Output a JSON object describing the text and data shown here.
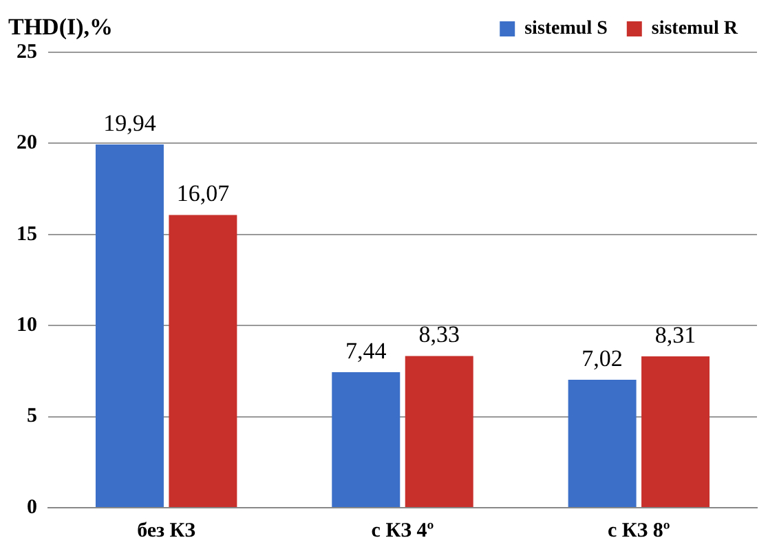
{
  "chart_data": {
    "type": "bar",
    "ylabel": "THD(I),%",
    "categories": [
      "без КЗ",
      "с КЗ 4º",
      "с КЗ 8º"
    ],
    "series": [
      {
        "name": "sistemul S",
        "color": "#3b6fc8",
        "values": [
          19.94,
          7.44,
          7.02
        ],
        "value_labels": [
          "19,94",
          "7,44",
          "7,02"
        ]
      },
      {
        "name": "sistemul R",
        "color": "#c8302c",
        "values": [
          16.07,
          8.33,
          8.31
        ],
        "value_labels": [
          "16,07",
          "8,33",
          "8,31"
        ]
      }
    ],
    "ylim": [
      0,
      25
    ],
    "yticks": [
      0,
      5,
      10,
      15,
      20,
      25
    ],
    "grid": "y",
    "legend": "top right"
  }
}
